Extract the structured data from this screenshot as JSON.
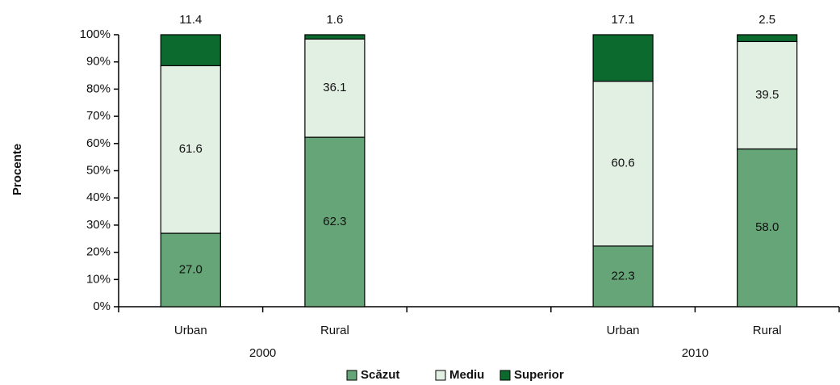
{
  "chart_data": {
    "type": "stacked_bar",
    "y_label": "Procente",
    "categories": [
      "Urban",
      "Rural",
      null,
      "Urban",
      "Rural"
    ],
    "groups": [
      "2000",
      "2010"
    ],
    "series": [
      {
        "name": "Scăzut",
        "color": "#66a577",
        "values": [
          27.0,
          62.3,
          null,
          22.3,
          58.0
        ],
        "value_labels": [
          "27.0",
          "62.3",
          null,
          "22.3",
          "58.0"
        ]
      },
      {
        "name": "Mediu",
        "color": "#e2f0e4",
        "values": [
          61.6,
          36.1,
          null,
          60.6,
          39.5
        ],
        "value_labels": [
          "61.6",
          "36.1",
          null,
          "60.6",
          "39.5"
        ]
      },
      {
        "name": "Superior",
        "color": "#0d6a2f",
        "values": [
          11.4,
          1.6,
          null,
          17.1,
          2.5
        ],
        "value_labels": [
          "11.4",
          "1.6",
          null,
          "17.1",
          "2.5"
        ]
      }
    ],
    "ylim": [
      0,
      100
    ],
    "yticks": [
      {
        "value": 0,
        "label": "0%"
      },
      {
        "value": 10,
        "label": "10%"
      },
      {
        "value": 20,
        "label": "20%"
      },
      {
        "value": 30,
        "label": "30%"
      },
      {
        "value": 40,
        "label": "40%"
      },
      {
        "value": 50,
        "label": "50%"
      },
      {
        "value": 60,
        "label": "60%"
      },
      {
        "value": 70,
        "label": "70%"
      },
      {
        "value": 80,
        "label": "80%"
      },
      {
        "value": 90,
        "label": "90%"
      },
      {
        "value": 100,
        "label": "100%"
      }
    ],
    "legend": "bottom"
  }
}
